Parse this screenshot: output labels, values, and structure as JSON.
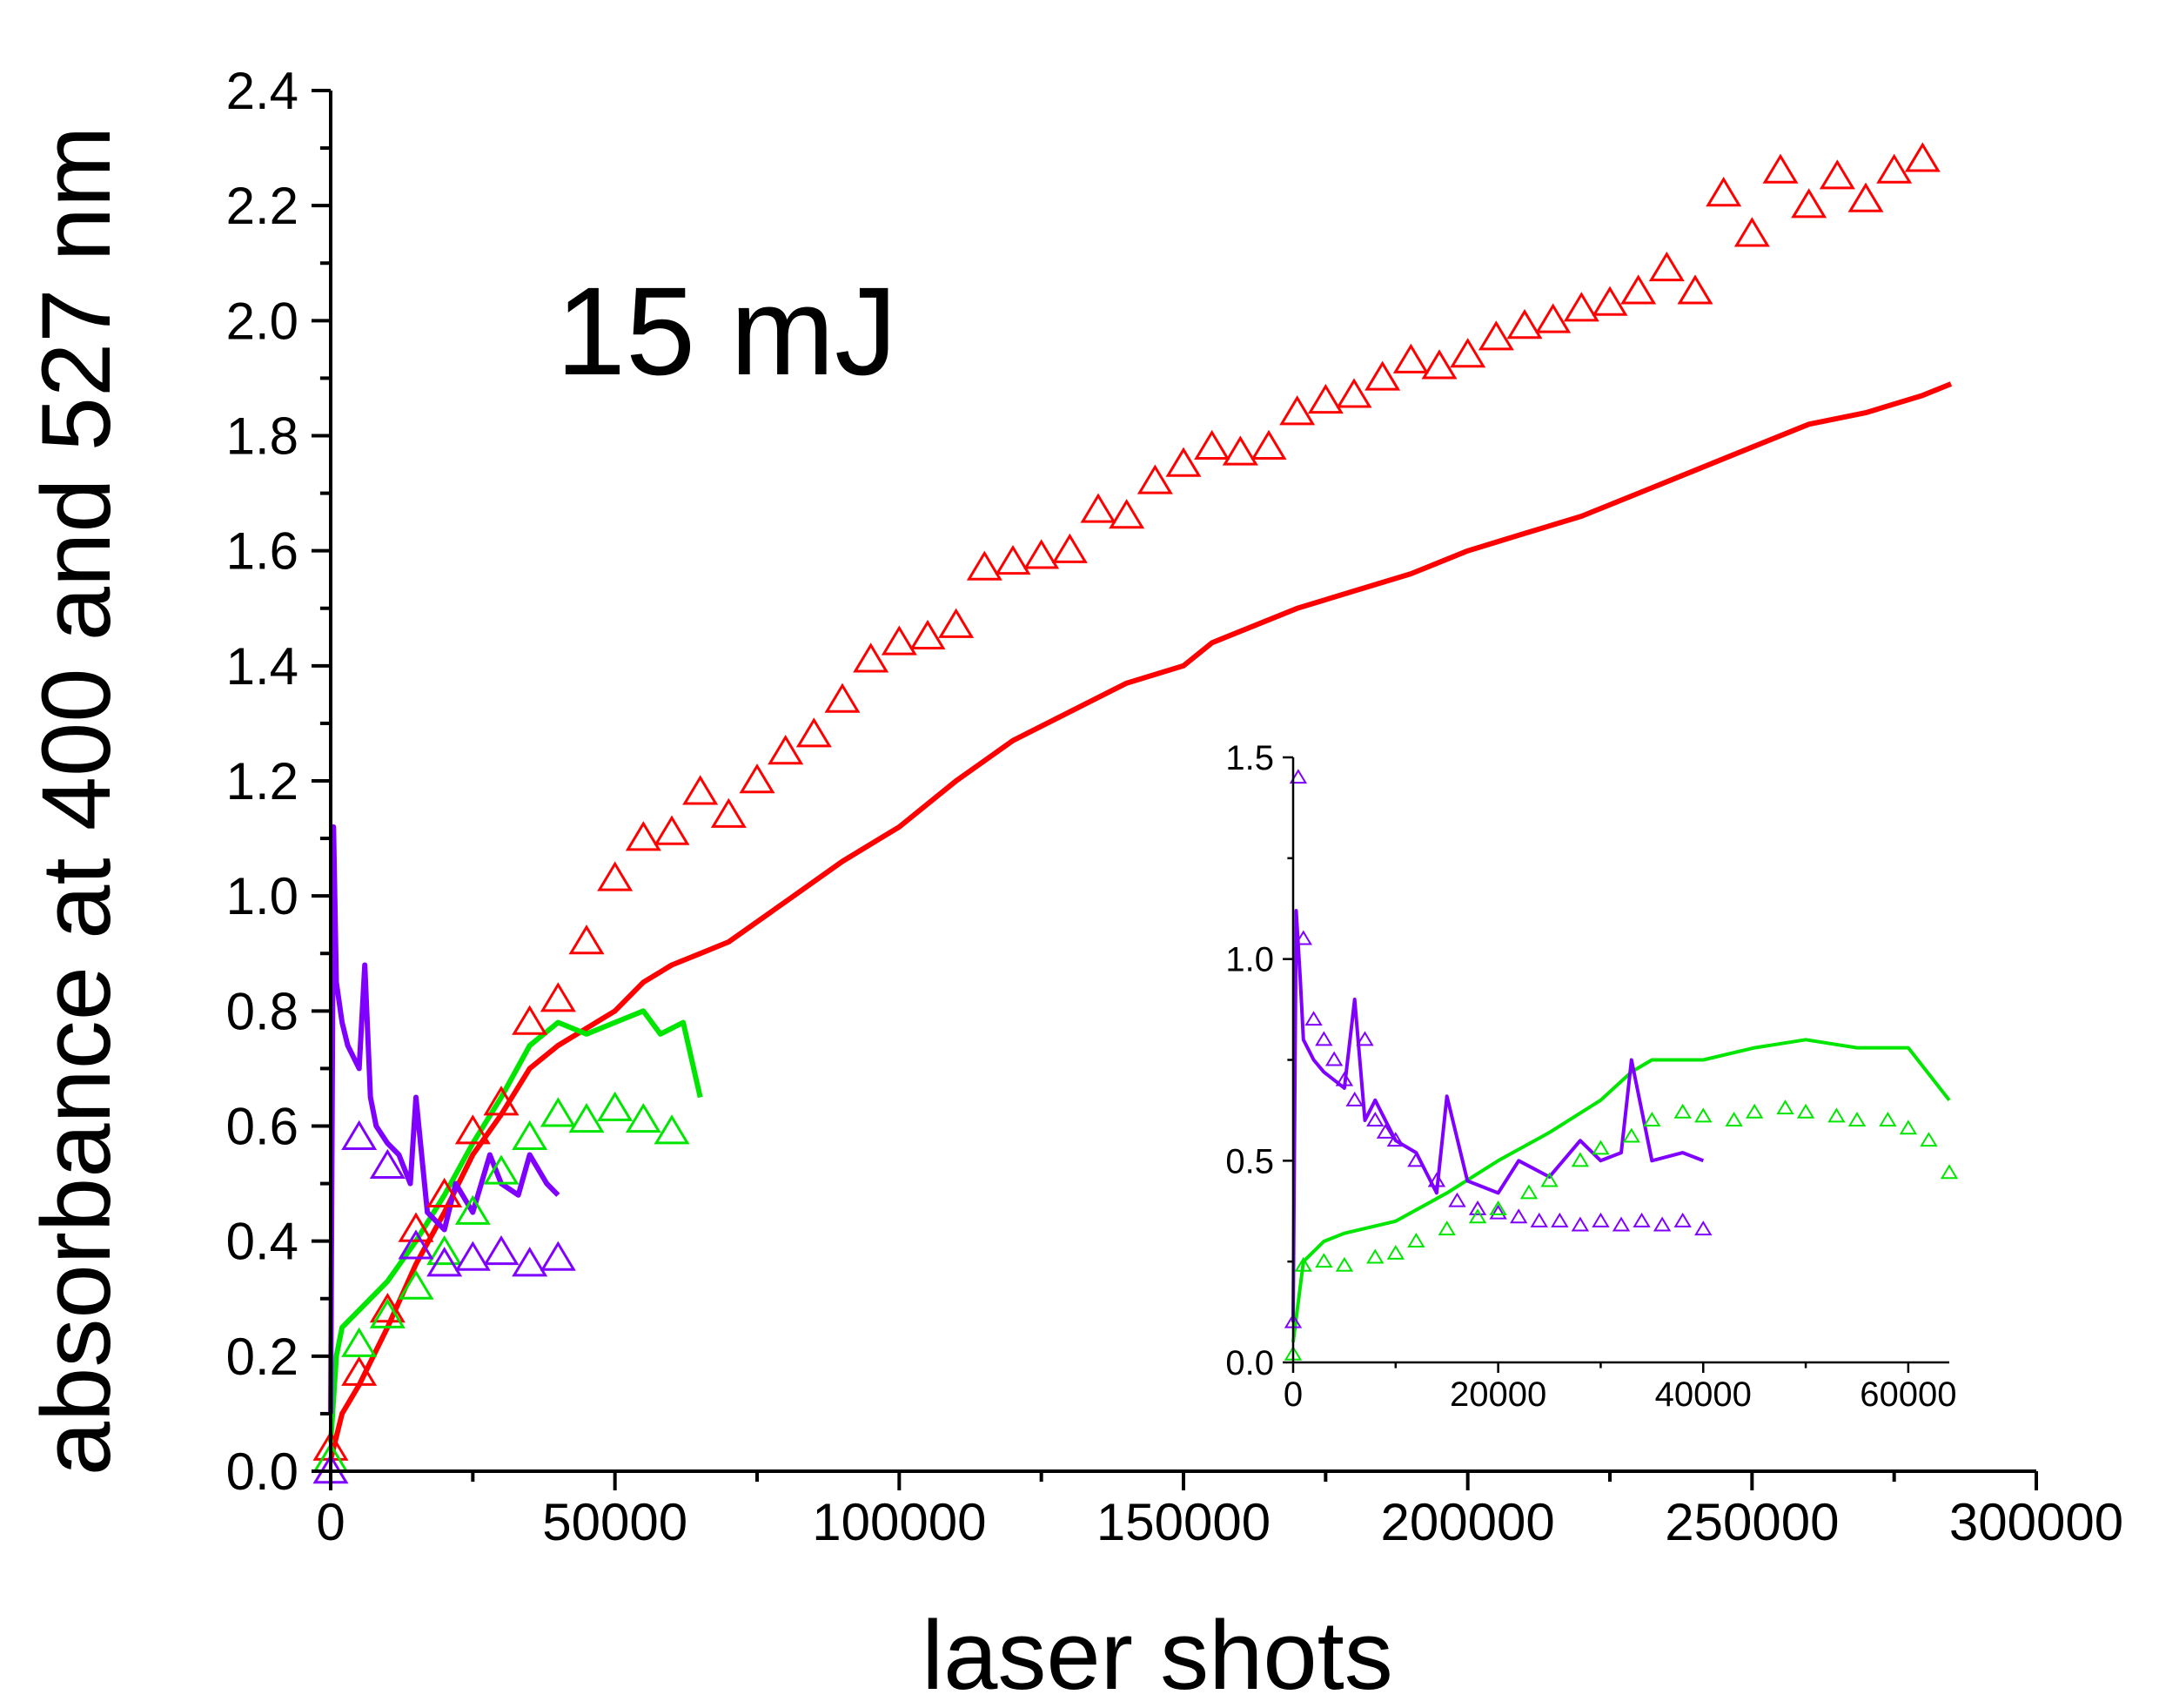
{
  "chart_data": {
    "type": "line",
    "annotation": "15 mJ",
    "xlabel": "laser shots",
    "ylabel": "absorbance at 400 and 527 nm",
    "xlim": [
      0,
      300000
    ],
    "ylim": [
      0,
      2.4
    ],
    "x_ticks": [
      0,
      50000,
      100000,
      150000,
      200000,
      250000,
      300000
    ],
    "x_tick_labels": [
      "0",
      "50000",
      "100000",
      "150000",
      "200000",
      "250000",
      "300000"
    ],
    "y_ticks": [
      0.0,
      0.2,
      0.4,
      0.6,
      0.8,
      1.0,
      1.2,
      1.4,
      1.6,
      1.8,
      2.0,
      2.2,
      2.4
    ],
    "y_tick_labels": [
      "0.0",
      "0.2",
      "0.4",
      "0.6",
      "0.8",
      "1.0",
      "1.2",
      "1.4",
      "1.6",
      "1.8",
      "2.0",
      "2.2",
      "2.4"
    ],
    "grid": false,
    "series": [
      {
        "name": "red line",
        "style": "line",
        "color": "#ff0000",
        "x": [
          0,
          2000,
          5000,
          10000,
          15000,
          20000,
          25000,
          30000,
          35000,
          40000,
          45000,
          50000,
          55000,
          60000,
          65000,
          70000,
          80000,
          90000,
          100000,
          110000,
          120000,
          130000,
          140000,
          150000,
          155000,
          160000,
          170000,
          180000,
          190000,
          200000,
          210000,
          220000,
          230000,
          240000,
          250000,
          260000,
          270000,
          280000,
          285000
        ],
        "y": [
          0.02,
          0.1,
          0.15,
          0.25,
          0.36,
          0.45,
          0.55,
          0.62,
          0.7,
          0.74,
          0.77,
          0.8,
          0.85,
          0.88,
          0.9,
          0.92,
          0.99,
          1.06,
          1.12,
          1.2,
          1.27,
          1.32,
          1.37,
          1.4,
          1.44,
          1.46,
          1.5,
          1.53,
          1.56,
          1.6,
          1.63,
          1.66,
          1.7,
          1.74,
          1.78,
          1.82,
          1.84,
          1.87,
          1.89
        ]
      },
      {
        "name": "green line",
        "style": "line",
        "color": "#00e600",
        "x": [
          0,
          1000,
          2000,
          5000,
          10000,
          15000,
          20000,
          25000,
          30000,
          35000,
          40000,
          45000,
          50000,
          55000,
          58000,
          62000,
          65000
        ],
        "y": [
          0.05,
          0.2,
          0.25,
          0.28,
          0.33,
          0.4,
          0.48,
          0.57,
          0.65,
          0.74,
          0.78,
          0.76,
          0.78,
          0.8,
          0.76,
          0.78,
          0.65
        ]
      },
      {
        "name": "purple line",
        "style": "line",
        "color": "#7f00ff",
        "x": [
          0,
          500,
          1000,
          2000,
          3000,
          5000,
          6000,
          7000,
          8000,
          10000,
          12000,
          14000,
          15000,
          17000,
          20000,
          22000,
          25000,
          28000,
          30000,
          33000,
          35000,
          38000,
          40000
        ],
        "y": [
          0.1,
          1.12,
          0.85,
          0.78,
          0.74,
          0.7,
          0.88,
          0.65,
          0.6,
          0.57,
          0.55,
          0.5,
          0.65,
          0.45,
          0.42,
          0.5,
          0.45,
          0.55,
          0.5,
          0.48,
          0.55,
          0.5,
          0.48
        ]
      },
      {
        "name": "red triangles",
        "style": "triangle",
        "color": "#ff0000",
        "x": [
          0,
          5000,
          10000,
          15000,
          20000,
          25000,
          30000,
          35000,
          40000,
          45000,
          50000,
          55000,
          60000,
          65000,
          70000,
          75000,
          80000,
          85000,
          90000,
          95000,
          100000,
          105000,
          110000,
          115000,
          120000,
          125000,
          130000,
          135000,
          140000,
          145000,
          150000,
          155000,
          160000,
          165000,
          170000,
          175000,
          180000,
          185000,
          190000,
          195000,
          200000,
          205000,
          210000,
          215000,
          220000,
          225000,
          230000,
          235000,
          240000,
          245000,
          250000,
          255000,
          260000,
          265000,
          270000,
          275000,
          280000
        ],
        "y": [
          0.04,
          0.17,
          0.28,
          0.42,
          0.48,
          0.59,
          0.64,
          0.78,
          0.82,
          0.92,
          1.03,
          1.1,
          1.11,
          1.18,
          1.14,
          1.2,
          1.25,
          1.28,
          1.34,
          1.41,
          1.44,
          1.45,
          1.47,
          1.57,
          1.58,
          1.59,
          1.6,
          1.67,
          1.66,
          1.72,
          1.75,
          1.78,
          1.77,
          1.78,
          1.84,
          1.86,
          1.87,
          1.9,
          1.93,
          1.92,
          1.94,
          1.97,
          1.99,
          2.0,
          2.02,
          2.03,
          2.05,
          2.09,
          2.05,
          2.22,
          2.15,
          2.26,
          2.2,
          2.25,
          2.21,
          2.26,
          2.28
        ]
      },
      {
        "name": "green triangles",
        "style": "triangle",
        "color": "#00e600",
        "x": [
          0,
          5000,
          10000,
          15000,
          20000,
          25000,
          30000,
          35000,
          40000,
          45000,
          50000,
          55000,
          60000
        ],
        "y": [
          0.02,
          0.22,
          0.27,
          0.32,
          0.38,
          0.45,
          0.52,
          0.58,
          0.62,
          0.61,
          0.63,
          0.61,
          0.59
        ]
      },
      {
        "name": "purple triangles",
        "style": "triangle",
        "color": "#7f00ff",
        "x": [
          0,
          5000,
          10000,
          15000,
          20000,
          25000,
          30000,
          35000,
          40000
        ],
        "y": [
          0.0,
          0.58,
          0.53,
          0.39,
          0.36,
          0.37,
          0.38,
          0.36,
          0.37
        ]
      }
    ],
    "inset": {
      "xlim": [
        0,
        64000
      ],
      "ylim": [
        0,
        1.5
      ],
      "x_ticks": [
        0,
        20000,
        40000,
        60000
      ],
      "x_tick_labels": [
        "0",
        "20000",
        "40000",
        "60000"
      ],
      "y_ticks": [
        0.0,
        0.5,
        1.0,
        1.5
      ],
      "y_tick_labels": [
        "0.0",
        "0.5",
        "1.0",
        "1.5"
      ],
      "series": [
        {
          "name": "inset green line",
          "style": "line",
          "color": "#00e600",
          "x": [
            0,
            1000,
            3000,
            5000,
            10000,
            15000,
            20000,
            25000,
            30000,
            33000,
            35000,
            40000,
            45000,
            50000,
            55000,
            60000,
            64000
          ],
          "y": [
            0.05,
            0.25,
            0.3,
            0.32,
            0.35,
            0.42,
            0.5,
            0.57,
            0.65,
            0.72,
            0.75,
            0.75,
            0.78,
            0.8,
            0.78,
            0.78,
            0.65
          ]
        },
        {
          "name": "inset purple line",
          "style": "line",
          "color": "#7f00ff",
          "x": [
            0,
            300,
            700,
            1000,
            2000,
            3000,
            5000,
            6000,
            7000,
            8000,
            10000,
            12000,
            14000,
            15000,
            17000,
            20000,
            22000,
            25000,
            28000,
            30000,
            32000,
            33000,
            35000,
            38000,
            40000
          ],
          "y": [
            0.1,
            1.12,
            0.95,
            0.8,
            0.75,
            0.72,
            0.68,
            0.9,
            0.6,
            0.65,
            0.55,
            0.52,
            0.42,
            0.66,
            0.45,
            0.42,
            0.5,
            0.46,
            0.55,
            0.5,
            0.52,
            0.75,
            0.5,
            0.52,
            0.5
          ]
        },
        {
          "name": "inset purple triangles",
          "style": "triangle",
          "color": "#7f00ff",
          "x": [
            0,
            500,
            1000,
            2000,
            3000,
            4000,
            5000,
            6000,
            7000,
            8000,
            9000,
            10000,
            12000,
            14000,
            16000,
            18000,
            20000,
            22000,
            24000,
            26000,
            28000,
            30000,
            32000,
            34000,
            36000,
            38000,
            40000
          ],
          "y": [
            0.1,
            1.45,
            1.05,
            0.85,
            0.8,
            0.75,
            0.7,
            0.65,
            0.8,
            0.6,
            0.57,
            0.55,
            0.5,
            0.45,
            0.4,
            0.38,
            0.37,
            0.36,
            0.35,
            0.35,
            0.34,
            0.35,
            0.34,
            0.35,
            0.34,
            0.35,
            0.33
          ]
        },
        {
          "name": "inset green triangles",
          "style": "triangle",
          "color": "#00e600",
          "x": [
            0,
            1000,
            3000,
            5000,
            8000,
            10000,
            12000,
            15000,
            18000,
            20000,
            23000,
            25000,
            28000,
            30000,
            33000,
            35000,
            38000,
            40000,
            43000,
            45000,
            48000,
            50000,
            53000,
            55000,
            58000,
            60000,
            62000,
            64000
          ],
          "y": [
            0.02,
            0.24,
            0.25,
            0.24,
            0.26,
            0.27,
            0.3,
            0.33,
            0.36,
            0.38,
            0.42,
            0.45,
            0.5,
            0.53,
            0.56,
            0.6,
            0.62,
            0.61,
            0.6,
            0.62,
            0.63,
            0.62,
            0.61,
            0.6,
            0.6,
            0.58,
            0.55,
            0.47
          ]
        }
      ]
    }
  }
}
